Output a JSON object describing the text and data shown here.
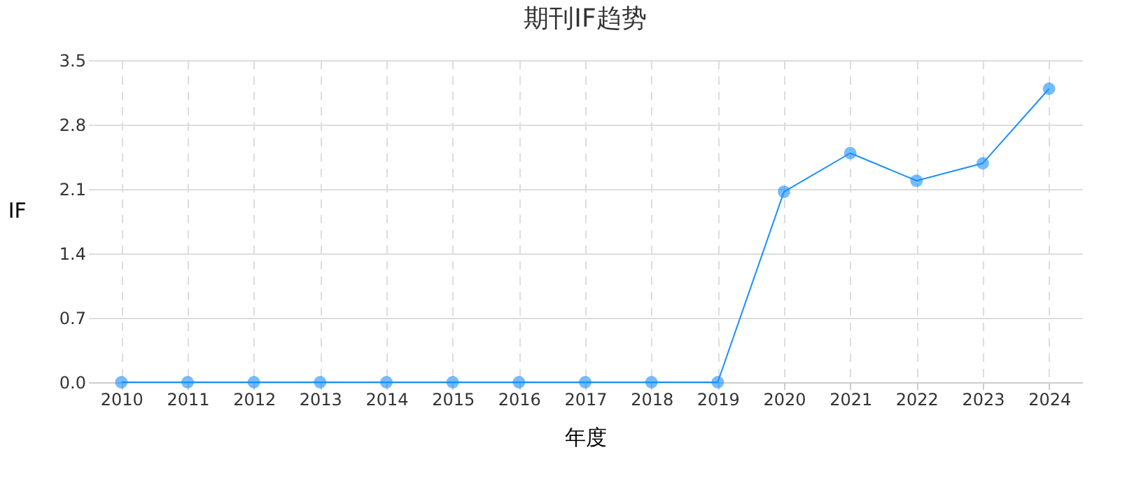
{
  "chart_data": {
    "type": "line",
    "title": "期刊IF趋势",
    "xlabel": "年度",
    "ylabel": "IF",
    "categories": [
      "2010",
      "2011",
      "2012",
      "2013",
      "2014",
      "2015",
      "2016",
      "2017",
      "2018",
      "2019",
      "2020",
      "2021",
      "2022",
      "2023",
      "2024"
    ],
    "series": [
      {
        "color": "#1890ff",
        "values": [
          0,
          0,
          0,
          0,
          0,
          0,
          0,
          0,
          0,
          0,
          2.07,
          2.49,
          2.19,
          2.38,
          3.19
        ]
      }
    ],
    "ylim": [
      0,
      3.5
    ],
    "yticks": [
      {
        "value": 0,
        "label": "0.0"
      },
      {
        "value": 0.7,
        "label": "0.7"
      },
      {
        "value": 1.4,
        "label": "1.4"
      },
      {
        "value": 2.1,
        "label": "2.1"
      },
      {
        "value": 2.8,
        "label": "2.8"
      },
      {
        "value": 3.5,
        "label": "3.5"
      }
    ],
    "grid": true,
    "marker": "circle",
    "line_style": "solid"
  }
}
